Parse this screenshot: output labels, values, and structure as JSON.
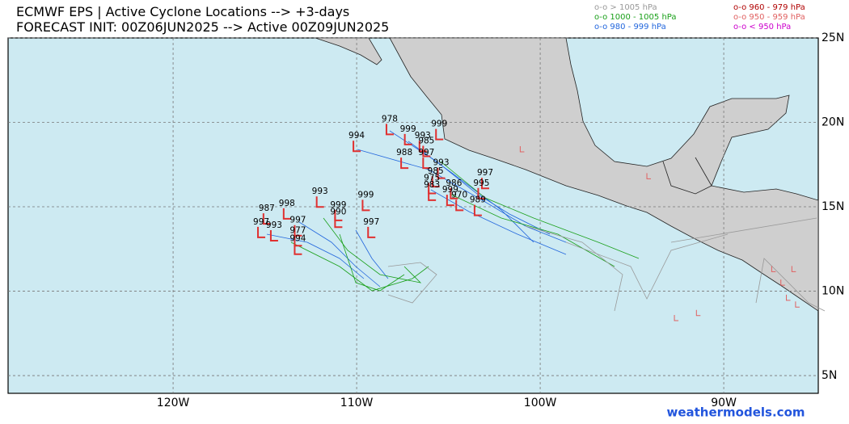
{
  "header": {
    "title_line1": "ECMWF EPS | Active Cyclone Locations --> +3-days",
    "title_line2": "FORECAST INIT: 00Z06JUN2025 --> Active 00Z09JUN2025"
  },
  "legend": [
    {
      "label": "o-o > 1005 hPa",
      "color": "#999999"
    },
    {
      "label": "o-o 960 - 979 hPa",
      "color": "#b00000"
    },
    {
      "label": "o-o 1000 - 1005 hPa",
      "color": "#1aa01a"
    },
    {
      "label": "o-o 950 - 959 hPa",
      "color": "#e06060"
    },
    {
      "label": "o-o 980 - 999 hPa",
      "color": "#2266dd"
    },
    {
      "label": "o-o < 950 hPa",
      "color": "#cc00cc"
    }
  ],
  "map": {
    "xlim": [
      -128.99,
      -84.85
    ],
    "ylim": [
      3.95,
      25
    ],
    "xticks": [
      {
        "value": -120,
        "label": "120W"
      },
      {
        "value": -110,
        "label": "110W"
      },
      {
        "value": -100,
        "label": "100W"
      },
      {
        "value": -90,
        "label": "90W"
      }
    ],
    "yticks": [
      {
        "value": 25,
        "label": "25N"
      },
      {
        "value": 20,
        "label": "20N"
      },
      {
        "value": 15,
        "label": "15N"
      },
      {
        "value": 10,
        "label": "10N"
      },
      {
        "value": 5,
        "label": "5N"
      }
    ],
    "storms": [
      {
        "p": 978,
        "lon": -108.2,
        "lat": 20.2
      },
      {
        "p": 999,
        "lon": -105.5,
        "lat": 19.9
      },
      {
        "p": 999,
        "lon": -107.2,
        "lat": 19.6
      },
      {
        "p": 993,
        "lon": -106.4,
        "lat": 19.2
      },
      {
        "p": 985,
        "lon": -106.2,
        "lat": 18.9
      },
      {
        "p": 994,
        "lon": -110.0,
        "lat": 19.2
      },
      {
        "p": 988,
        "lon": -107.4,
        "lat": 18.2
      },
      {
        "p": 997,
        "lon": -106.2,
        "lat": 18.2
      },
      {
        "p": 993,
        "lon": -105.4,
        "lat": 17.6
      },
      {
        "p": 985,
        "lon": -105.7,
        "lat": 17.1
      },
      {
        "p": 975,
        "lon": -105.9,
        "lat": 16.7
      },
      {
        "p": 983,
        "lon": -105.9,
        "lat": 16.3
      },
      {
        "p": 986,
        "lon": -104.7,
        "lat": 16.4
      },
      {
        "p": 999,
        "lon": -104.9,
        "lat": 16.0
      },
      {
        "p": 997,
        "lon": -103.0,
        "lat": 17.0
      },
      {
        "p": 995,
        "lon": -103.2,
        "lat": 16.4
      },
      {
        "p": 970,
        "lon": -104.4,
        "lat": 15.7
      },
      {
        "p": 989,
        "lon": -103.4,
        "lat": 15.4
      },
      {
        "p": 993,
        "lon": -112.0,
        "lat": 15.9
      },
      {
        "p": 999,
        "lon": -109.5,
        "lat": 15.7
      },
      {
        "p": 999,
        "lon": -111.0,
        "lat": 15.1
      },
      {
        "p": 990,
        "lon": -111.0,
        "lat": 14.7
      },
      {
        "p": 997,
        "lon": -109.2,
        "lat": 14.1
      },
      {
        "p": 998,
        "lon": -113.8,
        "lat": 15.2
      },
      {
        "p": 987,
        "lon": -114.9,
        "lat": 14.9
      },
      {
        "p": 997,
        "lon": -115.2,
        "lat": 14.1
      },
      {
        "p": 993,
        "lon": -114.5,
        "lat": 13.9
      },
      {
        "p": 997,
        "lon": -113.2,
        "lat": 14.2
      },
      {
        "p": 977,
        "lon": -113.2,
        "lat": 13.6
      },
      {
        "p": 994,
        "lon": -113.2,
        "lat": 13.1
      }
    ],
    "lows": [
      {
        "lon": -101.0,
        "lat": 18.4,
        "color": "#e06060"
      },
      {
        "lon": -94.1,
        "lat": 16.8,
        "color": "#e06060"
      },
      {
        "lon": -92.6,
        "lat": 8.4,
        "color": "#e06060"
      },
      {
        "lon": -91.4,
        "lat": 8.7,
        "color": "#e06060"
      },
      {
        "lon": -87.3,
        "lat": 11.3,
        "color": "#e06060"
      },
      {
        "lon": -86.8,
        "lat": 10.5,
        "color": "#e06060"
      },
      {
        "lon": -86.5,
        "lat": 9.6,
        "color": "#e06060"
      },
      {
        "lon": -86.0,
        "lat": 9.2,
        "color": "#e06060"
      },
      {
        "lon": -86.2,
        "lat": 11.3,
        "color": "#e06060"
      }
    ]
  },
  "footer": {
    "credit": "weathermodels.com"
  }
}
